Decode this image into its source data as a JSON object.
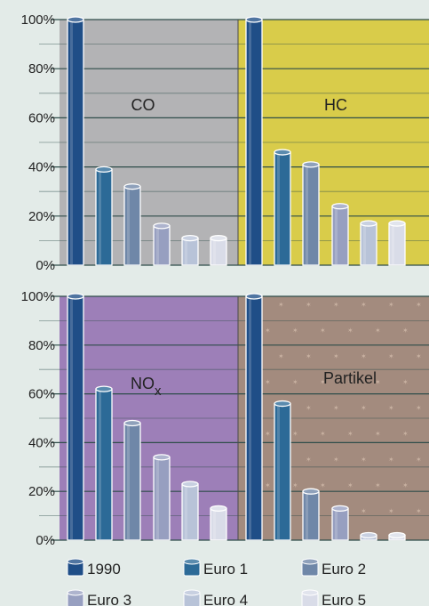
{
  "chart_data": {
    "type": "bar",
    "categories": [
      "1990",
      "Euro 1",
      "Euro 2",
      "Euro 3",
      "Euro 4",
      "Euro 5"
    ],
    "ylim": [
      0,
      100
    ],
    "y_ticks": [
      "100%",
      "80%",
      "60%",
      "40%",
      "20%",
      "0%"
    ],
    "grid": true,
    "legend": "bottom",
    "panels": [
      {
        "label": "CO",
        "values": [
          100,
          39,
          32,
          16,
          11,
          11
        ],
        "background": "#b3b3b5"
      },
      {
        "label": "HC",
        "values": [
          100,
          46,
          41,
          24,
          17,
          17
        ],
        "background": "#d9cc4a"
      },
      {
        "label": "NO",
        "label_sub": "x",
        "values": [
          100,
          62,
          48,
          34,
          23,
          13
        ],
        "background": "#9d7fb8"
      },
      {
        "label": "Partikel",
        "values": [
          100,
          56,
          20,
          13,
          2,
          2
        ],
        "background": "#a38b7e"
      }
    ],
    "series_colors": [
      "#1f4e87",
      "#2c6a97",
      "#6f87a8",
      "#979fc0",
      "#b8c3d8",
      "#d9dce8"
    ]
  },
  "legend": {
    "items": [
      "1990",
      "Euro 1",
      "Euro 2",
      "Euro 3",
      "Euro 4",
      "Euro 5"
    ]
  }
}
